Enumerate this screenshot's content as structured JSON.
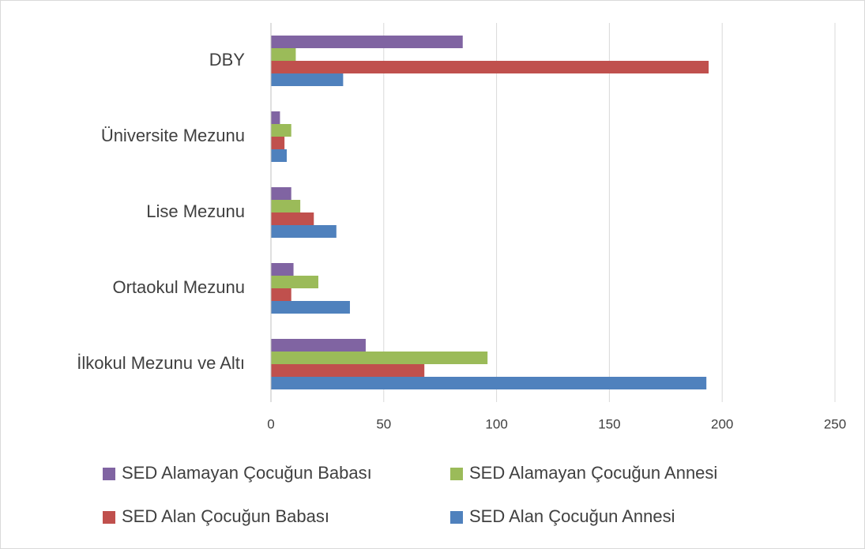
{
  "chart_data": {
    "type": "bar",
    "orientation": "horizontal",
    "categories": [
      "İlkokul Mezunu ve Altı",
      "Ortaokul Mezunu",
      "Lise Mezunu",
      "Üniversite Mezunu",
      "DBY"
    ],
    "series": [
      {
        "name": "SED Alan Çocuğun Annesi",
        "color": "#4f81bd",
        "values": [
          193,
          35,
          29,
          7,
          32
        ]
      },
      {
        "name": "SED Alan Çocuğun Babası",
        "color": "#c0504d",
        "values": [
          68,
          9,
          19,
          6,
          194
        ]
      },
      {
        "name": "SED Alamayan Çocuğun Annesi",
        "color": "#9bbb59",
        "values": [
          96,
          21,
          13,
          9,
          11
        ]
      },
      {
        "name": "SED Alamayan Çocuğun Babası",
        "color": "#8064a2",
        "values": [
          42,
          10,
          9,
          4,
          85
        ]
      }
    ],
    "xlim": [
      0,
      250
    ],
    "xticks": [
      0,
      50,
      100,
      150,
      200,
      250
    ],
    "grid": true,
    "legend": "bottom"
  }
}
